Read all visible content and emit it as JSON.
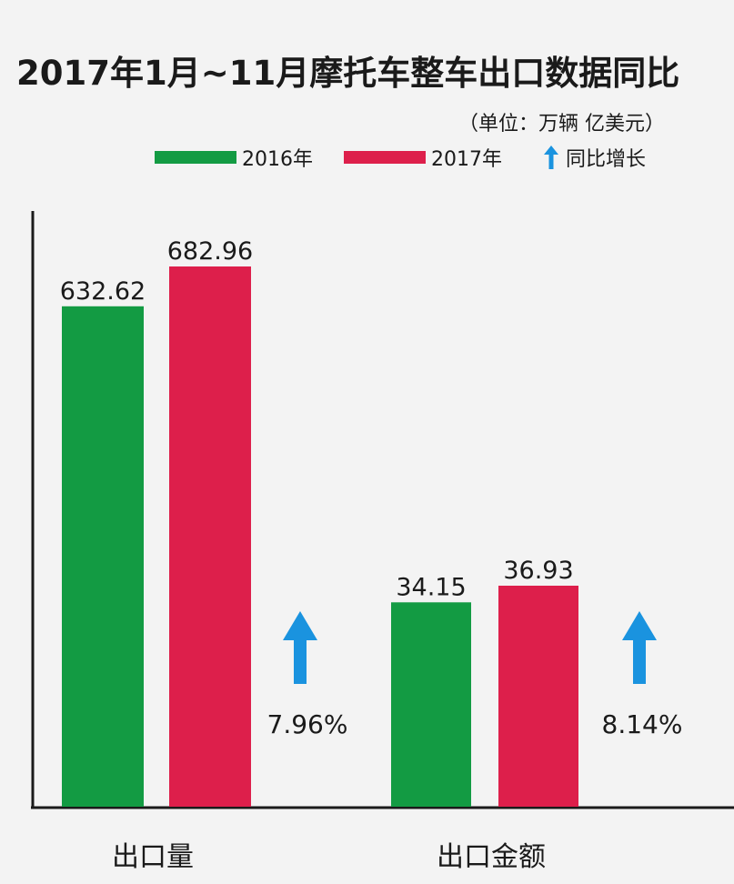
{
  "title": "2017年1月~11月摩托车整车出口数据同比",
  "unit_label": "（单位：万辆  亿美元）",
  "legend": {
    "growth_label": "同比增长"
  },
  "colors": {
    "series_2016": "#139b43",
    "series_2017": "#dd1f4b",
    "arrow": "#1a93df"
  },
  "chart_data": {
    "type": "bar",
    "title": "2017年1月~11月摩托车整车出口数据同比",
    "subtitle": "（单位：万辆  亿美元）",
    "categories": [
      "出口量",
      "出口金额"
    ],
    "series": [
      {
        "name": "2016年",
        "values": [
          632.62,
          34.15
        ],
        "labels": [
          "632.62",
          "34.15"
        ]
      },
      {
        "name": "2017年",
        "values": [
          682.96,
          36.93
        ],
        "labels": [
          "682.96",
          "36.93"
        ]
      }
    ],
    "growth": [
      "7.96%",
      "8.14%"
    ],
    "legend_position": "top",
    "grid": false,
    "axes_shown": [
      "left",
      "bottom"
    ],
    "note": "each category group drawn on its own scale"
  }
}
